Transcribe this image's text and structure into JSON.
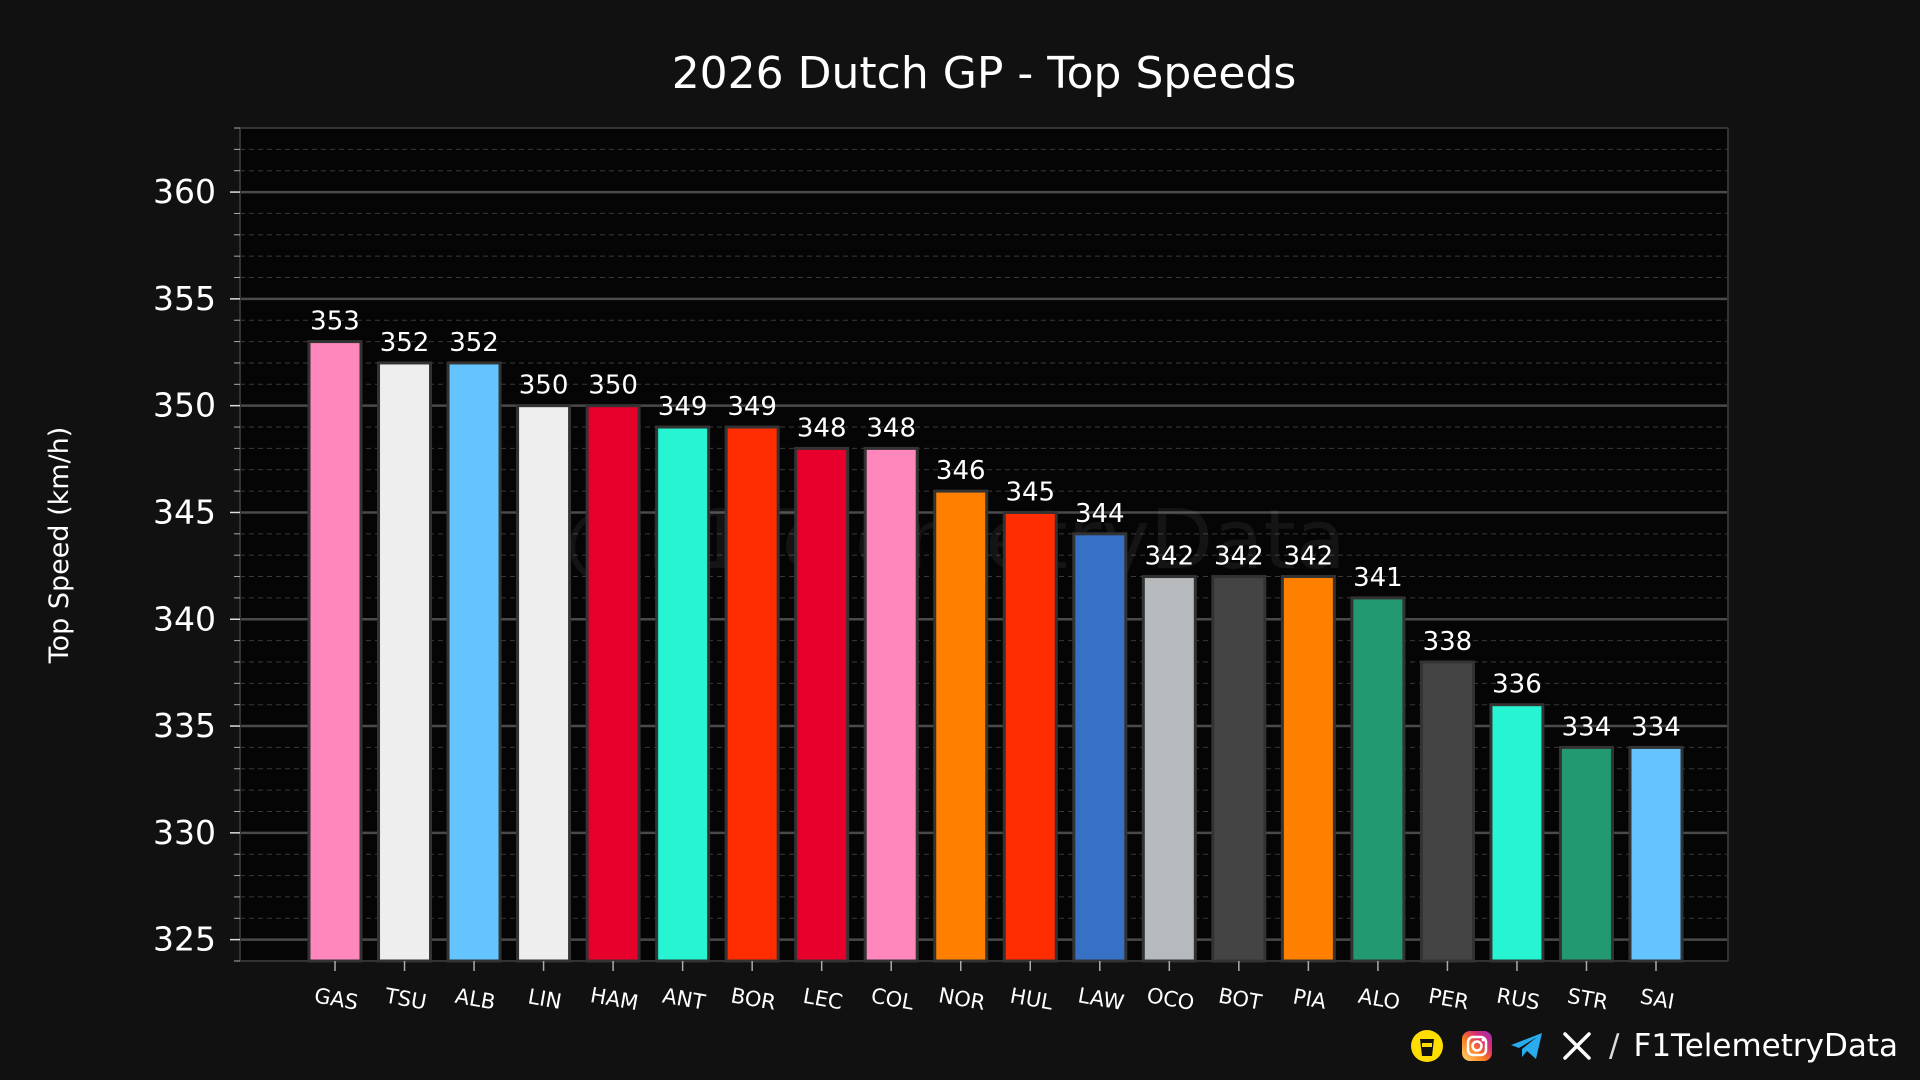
{
  "chart_data": {
    "type": "bar",
    "title": "2026 Dutch GP - Top Speeds",
    "xlabel": "",
    "ylabel": "Top Speed (km/h)",
    "ylim": [
      324,
      363
    ],
    "yticks": [
      325,
      330,
      335,
      340,
      345,
      350,
      355,
      360
    ],
    "grid": true,
    "categories": [
      "GAS",
      "TSU",
      "ALB",
      "LIN",
      "HAM",
      "ANT",
      "BOR",
      "LEC",
      "COL",
      "NOR",
      "HUL",
      "LAW",
      "OCO",
      "BOT",
      "PIA",
      "ALO",
      "PER",
      "RUS",
      "STR",
      "SAI"
    ],
    "values": [
      353,
      352,
      352,
      350,
      350,
      349,
      349,
      348,
      348,
      346,
      345,
      344,
      342,
      342,
      342,
      341,
      338,
      336,
      334,
      334
    ],
    "colors": [
      "#FF87BC",
      "#EEEEEE",
      "#64C4FF",
      "#EEEEEE",
      "#E8002D",
      "#27F4D2",
      "#FF2D00",
      "#E8002D",
      "#FF87BC",
      "#FF8000",
      "#FF2D00",
      "#3671C6",
      "#B6BABD",
      "#444444",
      "#FF8000",
      "#229971",
      "#444444",
      "#27F4D2",
      "#229971",
      "#64C4FF"
    ],
    "value_labels": [
      "353",
      "352",
      "352",
      "350",
      "350",
      "349",
      "349",
      "348",
      "348",
      "346",
      "345",
      "344",
      "342",
      "342",
      "342",
      "341",
      "338",
      "336",
      "334",
      "334"
    ]
  },
  "watermark": "@F1TelemetryData",
  "footer": {
    "icons": [
      "buymeacoffee-icon",
      "instagram-icon",
      "telegram-icon",
      "x-icon"
    ],
    "slash": "/",
    "handle": "F1TelemetryData"
  }
}
